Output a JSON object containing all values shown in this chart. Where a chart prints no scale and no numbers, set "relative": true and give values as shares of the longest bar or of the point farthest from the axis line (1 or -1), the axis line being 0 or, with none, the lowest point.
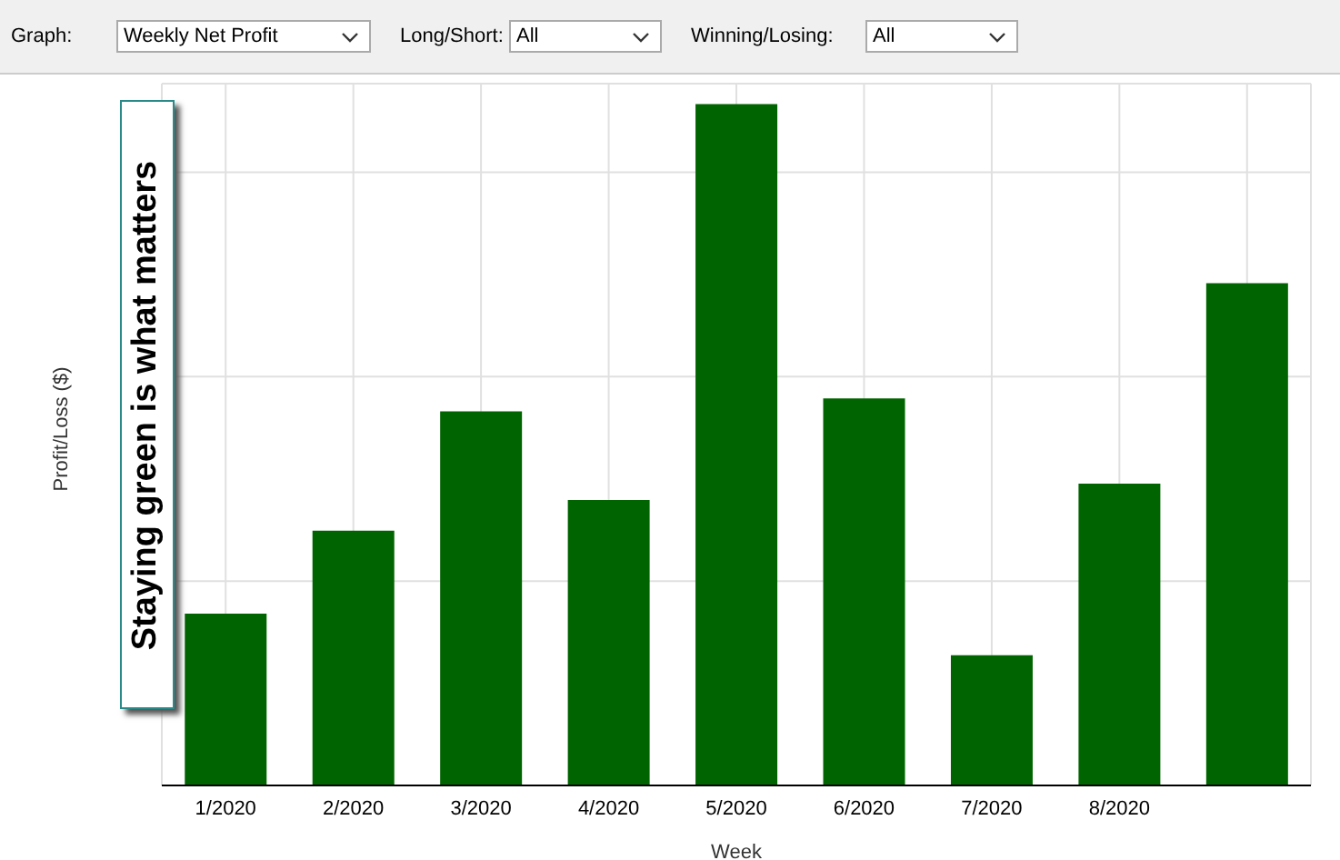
{
  "chart_data": {
    "type": "bar",
    "relative": true,
    "xlabel": "Week",
    "ylabel": "Profit/Loss ($)",
    "color": "#006400",
    "grid": true,
    "categories": [
      "1/2020",
      "2/2020",
      "3/2020",
      "4/2020",
      "5/2020",
      "6/2020",
      "7/2020",
      "8/2020",
      null
    ],
    "values": [
      0.252,
      0.374,
      0.549,
      0.419,
      1,
      0.568,
      0.191,
      0.443,
      0.737
    ],
    "annotations": [
      "Staying green is what matters",
      "Graph:",
      "Weekly Net Profit",
      "Long/Short:",
      "All",
      "Winning/Losing:",
      "All"
    ]
  }
}
